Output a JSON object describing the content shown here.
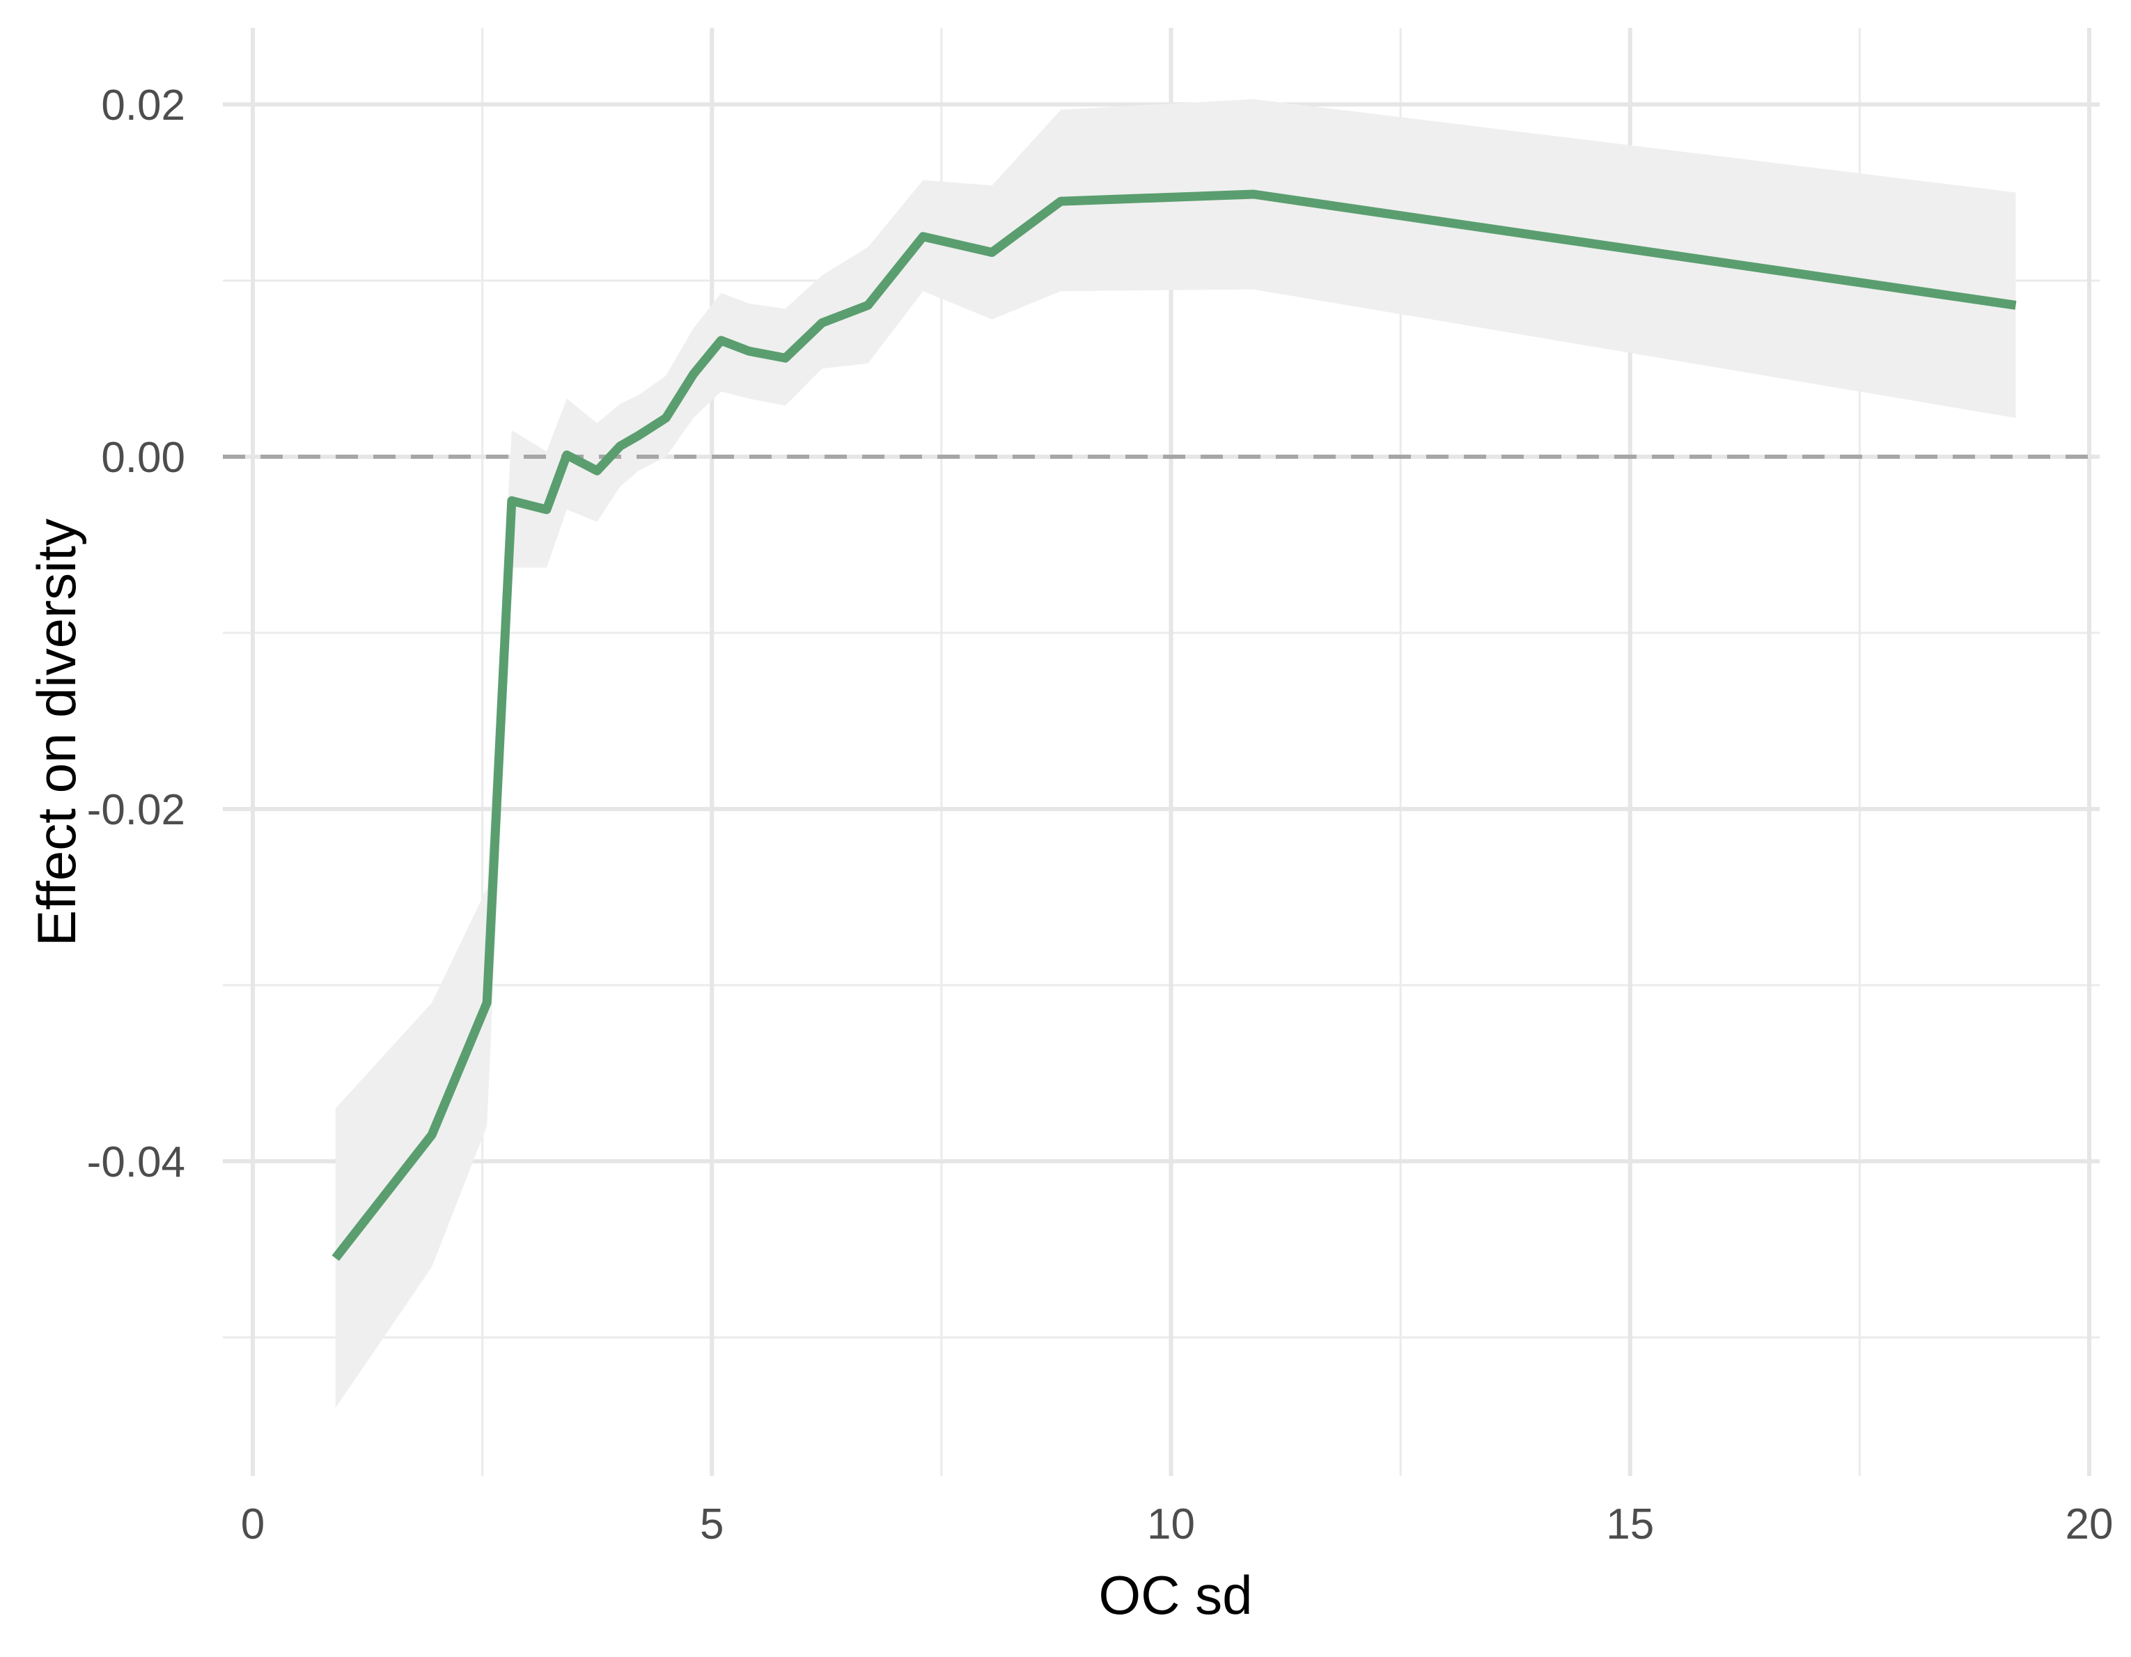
{
  "chart_data": {
    "type": "line",
    "title": "",
    "xlabel": "OC sd",
    "ylabel": "Effect on diversity",
    "xlim": [
      0,
      20
    ],
    "ylim": [
      -0.057,
      0.024
    ],
    "x_ticks": [
      0,
      5,
      10,
      15,
      20
    ],
    "x_tick_labels": [
      "0",
      "5",
      "10",
      "15",
      "20"
    ],
    "y_ticks": [
      -0.04,
      -0.02,
      0.0,
      0.02
    ],
    "y_tick_labels": [
      "-0.04",
      "-0.02",
      "0.00",
      "0.02"
    ],
    "x_minor_ticks": [
      2.5,
      7.5,
      12.5,
      17.5
    ],
    "y_minor_ticks": [
      -0.05,
      -0.03,
      -0.01,
      0.01
    ],
    "grid": true,
    "reference_line": {
      "y": 0,
      "style": "dashed",
      "color": "#a6a6a6"
    },
    "series": [
      {
        "color": "#5a9e6f",
        "band_color": "#efefef",
        "x": [
          0.9,
          1.95,
          2.55,
          2.82,
          3.2,
          3.42,
          3.75,
          4.0,
          4.2,
          4.5,
          4.8,
          5.1,
          5.4,
          5.8,
          6.2,
          6.7,
          7.3,
          8.05,
          8.8,
          10.9,
          19.2
        ],
        "y": [
          -0.0455,
          -0.0385,
          -0.031,
          -0.0025,
          -0.003,
          0.0001,
          -0.0008,
          0.0006,
          0.0012,
          0.0022,
          0.0047,
          0.0066,
          0.006,
          0.0056,
          0.0076,
          0.0086,
          0.0125,
          0.0116,
          0.0145,
          0.0149,
          0.0086
        ],
        "lower": [
          -0.054,
          -0.046,
          -0.038,
          -0.0063,
          -0.0063,
          -0.003,
          -0.0037,
          -0.0017,
          -0.0008,
          0.0,
          0.0022,
          0.0037,
          0.0033,
          0.0029,
          0.005,
          0.0053,
          0.0094,
          0.0078,
          0.0094,
          0.0095,
          0.0022
        ],
        "upper": [
          -0.037,
          -0.031,
          -0.0245,
          0.0015,
          0.0003,
          0.0033,
          0.0019,
          0.003,
          0.0035,
          0.0046,
          0.0073,
          0.0093,
          0.0087,
          0.0084,
          0.0103,
          0.0119,
          0.0157,
          0.0154,
          0.0197,
          0.0203,
          0.015
        ]
      }
    ]
  }
}
